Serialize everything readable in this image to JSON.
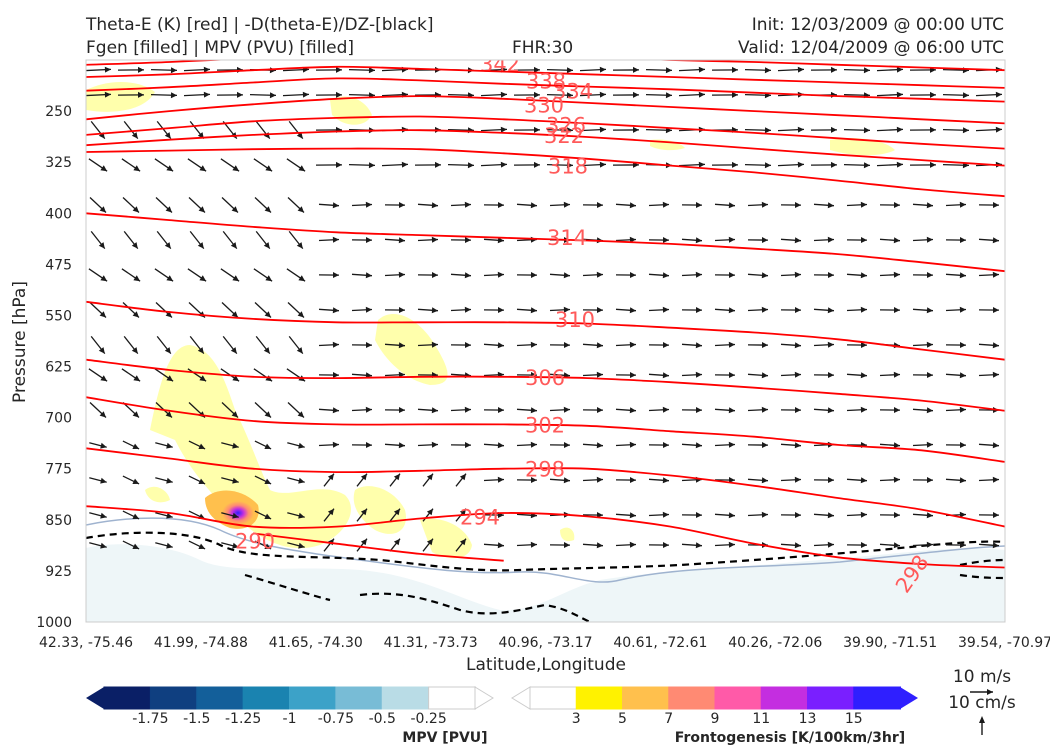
{
  "header": {
    "title_left_line1": "Theta-E (K) [red] | -D(theta-E)/DZ-[black]",
    "title_left_line2": "Fgen [filled] | MPV (PVU) [filled]",
    "fhr": "FHR:30",
    "init": "Init: 12/03/2009 @ 00:00 UTC",
    "valid": "Valid: 12/04/2009 @ 06:00 UTC"
  },
  "chart_data": {
    "type": "cross-section",
    "xlabel": "Latitude,Longitude",
    "ylabel": "Pressure [hPa]",
    "x_ticks": [
      "42.33, -75.46",
      "41.99, -74.88",
      "41.65, -74.30",
      "41.31, -73.73",
      "40.96, -73.17",
      "40.61, -72.61",
      "40.26, -72.06",
      "39.90, -71.51",
      "39.54, -70.97"
    ],
    "y_ticks": [
      250,
      325,
      400,
      475,
      550,
      625,
      700,
      775,
      850,
      925,
      1000
    ],
    "ylim": [
      175,
      1000
    ],
    "theta_e_contours": [
      {
        "label": "342",
        "lev": 180,
        "values": [
          182,
          178,
          172,
          165,
          160,
          165,
          170,
          175,
          178,
          182,
          186,
          190
        ]
      },
      {
        "label": "338",
        "lev": 205,
        "values": [
          200,
          196,
          190,
          185,
          188,
          192,
          196,
          200,
          204,
          208,
          212,
          216
        ]
      },
      {
        "label": "334",
        "lev": 220,
        "values": [
          220,
          215,
          208,
          202,
          205,
          210,
          214,
          218,
          223,
          228,
          232,
          236
        ]
      },
      {
        "label": "330",
        "lev": 240,
        "values": [
          262,
          250,
          240,
          232,
          228,
          232,
          238,
          244,
          250,
          256,
          262,
          268
        ]
      },
      {
        "label": "326",
        "lev": 270,
        "values": [
          285,
          275,
          265,
          260,
          258,
          262,
          268,
          275,
          282,
          290,
          298,
          305
        ]
      },
      {
        "label": "322",
        "lev": 285,
        "values": [
          300,
          292,
          285,
          280,
          278,
          282,
          288,
          296,
          305,
          314,
          322,
          330
        ]
      },
      {
        "label": "318",
        "lev": 330,
        "values": [
          310,
          308,
          306,
          305,
          306,
          312,
          320,
          330,
          340,
          352,
          365,
          375
        ]
      },
      {
        "label": "314",
        "lev": 435,
        "values": [
          400,
          410,
          420,
          428,
          432,
          436,
          440,
          445,
          452,
          460,
          472,
          485
        ]
      },
      {
        "label": "310",
        "lev": 555,
        "values": [
          530,
          545,
          555,
          560,
          560,
          560,
          562,
          568,
          575,
          585,
          600,
          615
        ]
      },
      {
        "label": "306",
        "lev": 640,
        "values": [
          615,
          630,
          640,
          642,
          640,
          640,
          642,
          648,
          656,
          665,
          675,
          690
        ]
      },
      {
        "label": "302",
        "lev": 710,
        "values": [
          670,
          690,
          705,
          710,
          710,
          710,
          712,
          720,
          728,
          740,
          748,
          765
        ]
      },
      {
        "label": "298",
        "lev": 775,
        "values": [
          745,
          760,
          775,
          780,
          778,
          775,
          775,
          785,
          800,
          818,
          835,
          860
        ]
      },
      {
        "label": "294",
        "lev": 845,
        "values": [
          830,
          840,
          860,
          860,
          848,
          840,
          845,
          860,
          885,
          905,
          915,
          920
        ]
      },
      {
        "label": "290",
        "lev": 880,
        "values": [
          null,
          null,
          870,
          885,
          900,
          910,
          null,
          null,
          null,
          null,
          null,
          null
        ]
      }
    ],
    "fgen_label": "Frontogenesis [K/100km/3hr]",
    "fgen_levels": [
      3,
      5,
      7,
      9,
      11,
      13,
      15
    ],
    "fgen_colors": [
      "#ffffff",
      "#fff200",
      "#ffc04d",
      "#ff8a73",
      "#ff5aa8",
      "#c42ee0",
      "#7a1fff",
      "#2f1fff"
    ],
    "mpv_label": "MPV [PVU]",
    "mpv_levels": [
      -1.75,
      -1.5,
      -1.25,
      -1.0,
      -0.75,
      -0.5,
      -0.25
    ],
    "mpv_colors": [
      "#0a1f66",
      "#0f3f80",
      "#135f9a",
      "#1a83b0",
      "#3ca2c8",
      "#78bcd6",
      "#b9dce6",
      "#ffffff"
    ],
    "wind_legend_h": "10 m/s",
    "wind_legend_v": "10 cm/s",
    "colors": {
      "theta_e": "#ff0000",
      "ddz": "#000000",
      "arrows": "#1a1a1a"
    }
  }
}
